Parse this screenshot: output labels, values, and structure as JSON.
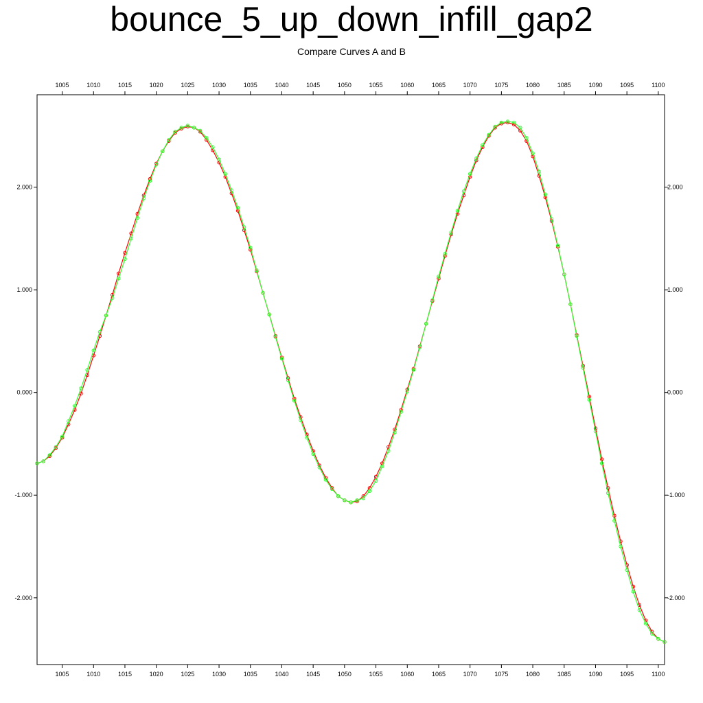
{
  "title": "bounce_5_up_down_infill_gap2",
  "subtitle": "Compare Curves A and B",
  "chart_data": {
    "type": "line",
    "title": "bounce_5_up_down_infill_gap2",
    "subtitle": "Compare Curves A and B",
    "xlabel": "",
    "ylabel": "",
    "xlim": [
      1001,
      1101
    ],
    "ylim": [
      -2.65,
      2.9
    ],
    "x_ticks": [
      1005,
      1010,
      1015,
      1020,
      1025,
      1030,
      1035,
      1040,
      1045,
      1050,
      1055,
      1060,
      1065,
      1070,
      1075,
      1080,
      1085,
      1090,
      1095,
      1100
    ],
    "x_tick_labels": [
      "1005",
      "1010",
      "1015",
      "1020",
      "1025",
      "1030",
      "1035",
      "1040",
      "1045",
      "1050",
      "1055",
      "1060",
      "1065",
      "1070",
      "1075",
      "1080",
      "1085",
      "1090",
      "1095",
      "1100"
    ],
    "y_ticks": [
      -2,
      -1,
      0,
      1,
      2
    ],
    "y_tick_labels": [
      "-2.000",
      "-1.000",
      "0.000",
      "1.000",
      "2.000"
    ],
    "grid": false,
    "legend": "none",
    "series": [
      {
        "color": "#ff0000",
        "x": [
          1001,
          1002,
          1003,
          1004,
          1005,
          1006,
          1007,
          1008,
          1009,
          1010,
          1011,
          1012,
          1013,
          1014,
          1015,
          1016,
          1017,
          1018,
          1019,
          1020,
          1021,
          1022,
          1023,
          1024,
          1025,
          1026,
          1027,
          1028,
          1029,
          1030,
          1031,
          1032,
          1033,
          1034,
          1035,
          1036,
          1037,
          1038,
          1039,
          1040,
          1041,
          1042,
          1043,
          1044,
          1045,
          1046,
          1047,
          1048,
          1049,
          1050,
          1051,
          1052,
          1053,
          1054,
          1055,
          1056,
          1057,
          1058,
          1059,
          1060,
          1061,
          1062,
          1063,
          1064,
          1065,
          1066,
          1067,
          1068,
          1069,
          1070,
          1071,
          1072,
          1073,
          1074,
          1075,
          1076,
          1077,
          1078,
          1079,
          1080,
          1081,
          1082,
          1083,
          1084,
          1085,
          1086,
          1087,
          1088,
          1089,
          1090,
          1091,
          1092,
          1093,
          1094,
          1095,
          1096,
          1097,
          1098,
          1099,
          1100,
          1101
        ],
        "y": [
          -0.69,
          -0.67,
          -0.62,
          -0.54,
          -0.44,
          -0.31,
          -0.17,
          -0.01,
          0.17,
          0.36,
          0.55,
          0.75,
          0.95,
          1.16,
          1.36,
          1.55,
          1.74,
          1.92,
          2.08,
          2.23,
          2.35,
          2.45,
          2.53,
          2.57,
          2.59,
          2.58,
          2.54,
          2.46,
          2.36,
          2.24,
          2.1,
          1.94,
          1.77,
          1.58,
          1.39,
          1.18,
          0.97,
          0.76,
          0.55,
          0.34,
          0.14,
          -0.06,
          -0.24,
          -0.41,
          -0.57,
          -0.71,
          -0.83,
          -0.93,
          -1.01,
          -1.05,
          -1.07,
          -1.06,
          -1.01,
          -0.93,
          -0.82,
          -0.69,
          -0.53,
          -0.36,
          -0.17,
          0.03,
          0.23,
          0.45,
          0.67,
          0.89,
          1.11,
          1.33,
          1.54,
          1.74,
          1.92,
          2.1,
          2.26,
          2.39,
          2.5,
          2.58,
          2.62,
          2.63,
          2.61,
          2.55,
          2.45,
          2.3,
          2.11,
          1.9,
          1.67,
          1.42,
          1.15,
          0.86,
          0.56,
          0.26,
          -0.04,
          -0.35,
          -0.65,
          -0.93,
          -1.2,
          -1.45,
          -1.68,
          -1.89,
          -2.07,
          -2.22,
          -2.33,
          -2.4,
          -2.43
        ]
      },
      {
        "color": "#33ff33",
        "x": [
          1001,
          1002,
          1003,
          1004,
          1005,
          1006,
          1007,
          1008,
          1009,
          1010,
          1011,
          1012,
          1013,
          1014,
          1015,
          1016,
          1017,
          1018,
          1019,
          1020,
          1021,
          1022,
          1023,
          1024,
          1025,
          1026,
          1027,
          1028,
          1029,
          1030,
          1031,
          1032,
          1033,
          1034,
          1035,
          1036,
          1037,
          1038,
          1039,
          1040,
          1041,
          1042,
          1043,
          1044,
          1045,
          1046,
          1047,
          1048,
          1049,
          1050,
          1051,
          1052,
          1053,
          1054,
          1055,
          1056,
          1057,
          1058,
          1059,
          1060,
          1061,
          1062,
          1063,
          1064,
          1065,
          1066,
          1067,
          1068,
          1069,
          1070,
          1071,
          1072,
          1073,
          1074,
          1075,
          1076,
          1077,
          1078,
          1079,
          1080,
          1081,
          1082,
          1083,
          1084,
          1085,
          1086,
          1087,
          1088,
          1089,
          1090,
          1091,
          1092,
          1093,
          1094,
          1095,
          1096,
          1097,
          1098,
          1099,
          1100,
          1101
        ],
        "y": [
          -0.69,
          -0.67,
          -0.61,
          -0.53,
          -0.43,
          -0.28,
          -0.13,
          0.04,
          0.22,
          0.41,
          0.59,
          0.75,
          0.92,
          1.11,
          1.3,
          1.5,
          1.7,
          1.89,
          2.06,
          2.22,
          2.35,
          2.46,
          2.54,
          2.58,
          2.6,
          2.58,
          2.55,
          2.48,
          2.39,
          2.27,
          2.13,
          1.97,
          1.8,
          1.61,
          1.41,
          1.19,
          0.97,
          0.76,
          0.54,
          0.33,
          0.12,
          -0.08,
          -0.27,
          -0.44,
          -0.6,
          -0.73,
          -0.85,
          -0.94,
          -1.01,
          -1.05,
          -1.07,
          -1.05,
          -1.03,
          -0.96,
          -0.86,
          -0.72,
          -0.57,
          -0.39,
          -0.19,
          0.01,
          0.22,
          0.44,
          0.67,
          0.9,
          1.13,
          1.35,
          1.56,
          1.77,
          1.96,
          2.13,
          2.28,
          2.41,
          2.51,
          2.59,
          2.63,
          2.64,
          2.63,
          2.58,
          2.48,
          2.33,
          2.15,
          1.93,
          1.69,
          1.43,
          1.15,
          0.86,
          0.55,
          0.24,
          -0.07,
          -0.38,
          -0.69,
          -0.98,
          -1.25,
          -1.5,
          -1.73,
          -1.94,
          -2.12,
          -2.25,
          -2.35,
          -2.4,
          -2.43
        ]
      }
    ]
  }
}
